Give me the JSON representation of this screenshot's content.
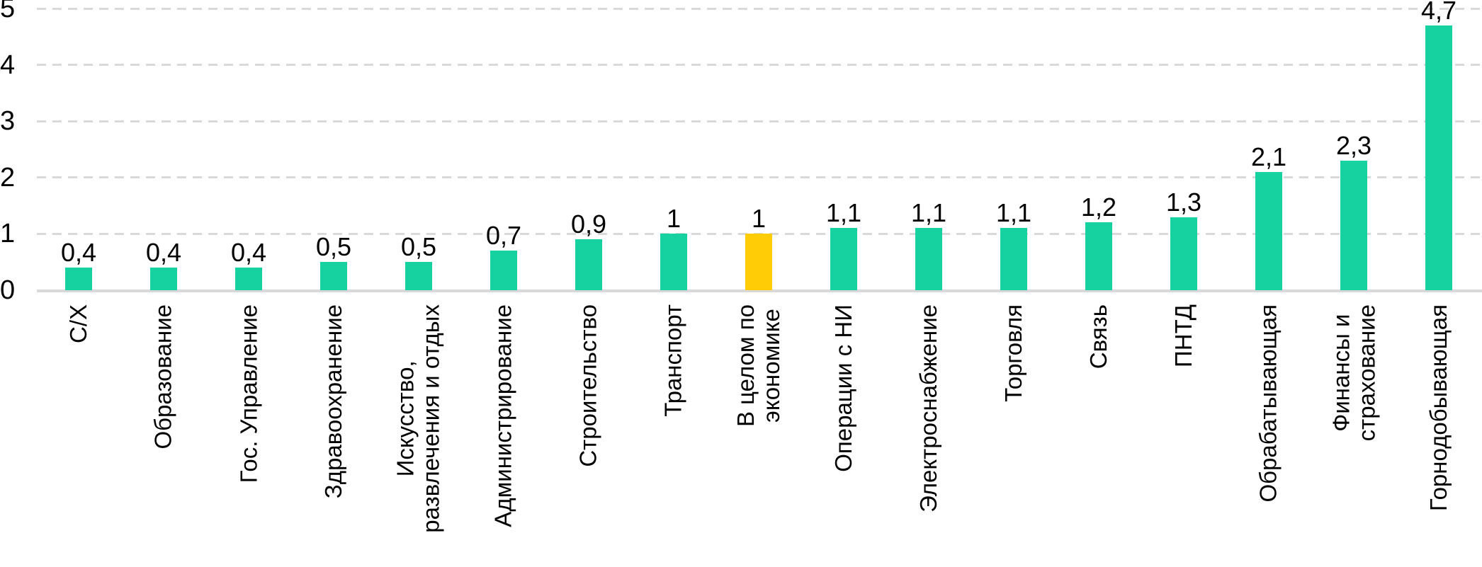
{
  "chart_data": {
    "type": "bar",
    "title": "",
    "xlabel": "",
    "ylabel": "",
    "ylim": [
      0,
      5
    ],
    "yticks": [
      "0",
      "1",
      "2",
      "3",
      "4",
      "5"
    ],
    "grid": "dashed-horizontal",
    "legend": "none",
    "decimal_separator": ",",
    "highlight_index": 8,
    "colors": {
      "bar": "#15D2A0",
      "highlight_bar": "#FFCC05",
      "gridline": "#D9D9D9",
      "axis_line": "#D9D9D9",
      "text": "#000000",
      "background": "#FFFFFF"
    },
    "bars": [
      {
        "label_lines": [
          "С/Х"
        ],
        "value": 0.4,
        "value_label": "0,4"
      },
      {
        "label_lines": [
          "Образование"
        ],
        "value": 0.4,
        "value_label": "0,4"
      },
      {
        "label_lines": [
          "Гос. Управление"
        ],
        "value": 0.4,
        "value_label": "0,4"
      },
      {
        "label_lines": [
          "Здравоохранение"
        ],
        "value": 0.5,
        "value_label": "0,5"
      },
      {
        "label_lines": [
          "Искусство,",
          "развлечения и отдых"
        ],
        "value": 0.5,
        "value_label": "0,5"
      },
      {
        "label_lines": [
          "Администрирование"
        ],
        "value": 0.7,
        "value_label": "0,7"
      },
      {
        "label_lines": [
          "Строительство"
        ],
        "value": 0.9,
        "value_label": "0,9"
      },
      {
        "label_lines": [
          "Транспорт"
        ],
        "value": 1,
        "value_label": "1"
      },
      {
        "label_lines": [
          "В целом по",
          "экономике"
        ],
        "value": 1,
        "value_label": "1"
      },
      {
        "label_lines": [
          "Операции с НИ"
        ],
        "value": 1.1,
        "value_label": "1,1"
      },
      {
        "label_lines": [
          "Электроснабжение"
        ],
        "value": 1.1,
        "value_label": "1,1"
      },
      {
        "label_lines": [
          "Торговля"
        ],
        "value": 1.1,
        "value_label": "1,1"
      },
      {
        "label_lines": [
          "Связь"
        ],
        "value": 1.2,
        "value_label": "1,2"
      },
      {
        "label_lines": [
          "ПНТД"
        ],
        "value": 1.3,
        "value_label": "1,3"
      },
      {
        "label_lines": [
          "Обрабатывающая"
        ],
        "value": 2.1,
        "value_label": "2,1"
      },
      {
        "label_lines": [
          "Финансы и",
          "страхование"
        ],
        "value": 2.3,
        "value_label": "2,3"
      },
      {
        "label_lines": [
          "Горнодобывающая"
        ],
        "value": 4.7,
        "value_label": "4,7"
      }
    ]
  }
}
